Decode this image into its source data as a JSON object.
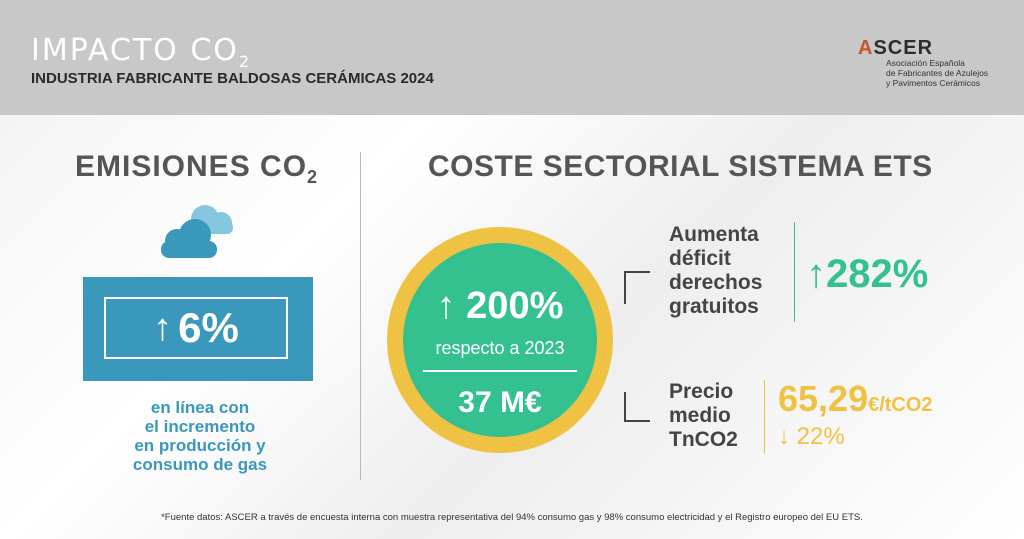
{
  "header": {
    "title": "IMPACTO CO",
    "title_sub": "2",
    "subtitle": "INDUSTRIA FABRICANTE BALDOSAS CERÁMICAS 2024",
    "logo": {
      "a": "A",
      "rest": "SCER",
      "line1": "Asociación Española",
      "line2": "de Fabricantes de Azulejos",
      "line3": "y Pavimentos Cerámicos"
    }
  },
  "left": {
    "heading": "EMISIONES CO",
    "heading_sub": "2",
    "icon": "cloud-icon",
    "arrow": "↑",
    "value": "6%",
    "desc_lines": [
      "en línea con",
      "el incremento",
      "en producción y",
      "consumo de gas"
    ]
  },
  "right": {
    "heading": "COSTE SECTORIAL SISTEMA ETS",
    "circle": {
      "arrow": "↑",
      "main": "200%",
      "sub": "respecto a 2023",
      "value": "37 M€"
    },
    "item1": {
      "label_lines": [
        "Aumenta",
        "déficit",
        "derechos",
        "gratuitos"
      ],
      "arrow": "↑",
      "value": "282%"
    },
    "item2": {
      "label_lines": [
        "Precio",
        "medio",
        "TnCO2"
      ],
      "value": "65,29",
      "unit": "€/tCO2",
      "arrow": "↓",
      "pct": "22%"
    }
  },
  "footer": "*Fuente datos: ASCER a través de encuesta interna con muestra representativa del 94% consumo gas y 98% consumo electricidad y el Registro europeo del EU ETS.",
  "colors": {
    "header_bg": "#c8c8c8",
    "blue": "#3a98bd",
    "green": "#35c18f",
    "yellow": "#f0c244",
    "logo_accent": "#c6572b"
  }
}
